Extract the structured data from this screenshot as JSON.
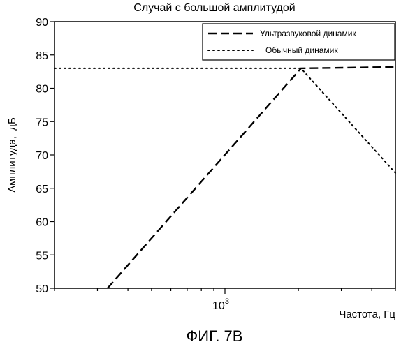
{
  "caption": "ФИГ. 7В",
  "chart_data": {
    "type": "line",
    "title": "Случай с большой амплитудой",
    "xlabel": "Частота, Гц",
    "ylabel": "Амплитуда,  дБ",
    "xscale": "log",
    "xlim": [
      200,
      5000
    ],
    "ylim": [
      50,
      90
    ],
    "yticks": [
      50,
      55,
      60,
      65,
      70,
      75,
      80,
      85,
      90
    ],
    "xtick_labels": [
      {
        "value": 1000,
        "base": "10",
        "exp": "3"
      }
    ],
    "grid": false,
    "legend_position": "top-right",
    "series": [
      {
        "name": "Ультразвуковой динамик",
        "style": "dashed",
        "color": "#000000",
        "points": [
          [
            330,
            50
          ],
          [
            2050,
            83
          ],
          [
            5000,
            83.2
          ]
        ]
      },
      {
        "name": "Обычный динамик",
        "style": "dotted",
        "color": "#000000",
        "points": [
          [
            200,
            83
          ],
          [
            2050,
            83
          ],
          [
            5000,
            67.3
          ]
        ]
      }
    ]
  }
}
